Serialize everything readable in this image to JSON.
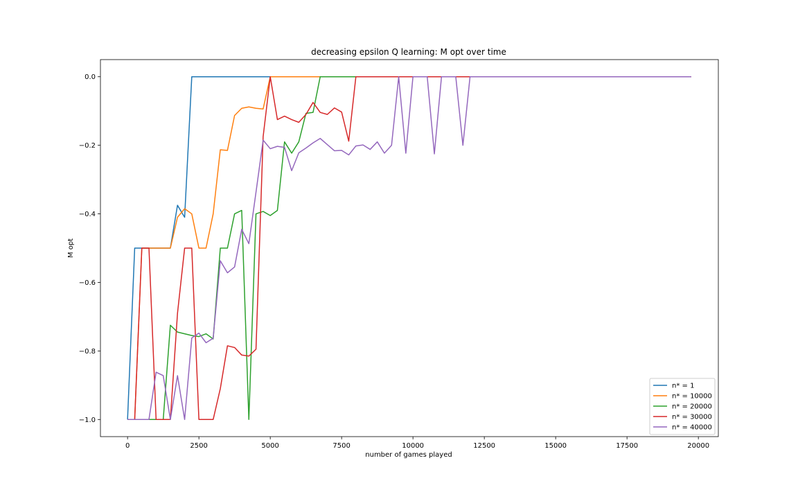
{
  "chart_data": {
    "type": "line",
    "title": "decreasing epsilon Q learning: M opt over time",
    "xlabel": "number of games played",
    "ylabel": "M opt",
    "xlim": [
      -950,
      20700
    ],
    "ylim": [
      -1.05,
      0.05
    ],
    "xticks": [
      0,
      2500,
      5000,
      7500,
      10000,
      12500,
      15000,
      17500,
      20000
    ],
    "yticks": [
      -1.0,
      -0.8,
      -0.6,
      -0.4,
      -0.2,
      0.0
    ],
    "xtick_labels": [
      "0",
      "2500",
      "5000",
      "7500",
      "10000",
      "12500",
      "15000",
      "17500",
      "20000"
    ],
    "ytick_labels": [
      "−1.0",
      "−0.8",
      "−0.6",
      "−0.4",
      "−0.2",
      "0.0"
    ],
    "grid": false,
    "legend_position": "lower-right",
    "series": [
      {
        "name": "n* = 1",
        "color": "#1f77b4",
        "x": [
          0,
          250,
          500,
          750,
          1000,
          1250,
          1500,
          1750,
          2000,
          2250,
          2500,
          5000,
          19750
        ],
        "y": [
          -1.0,
          -0.5,
          -0.5,
          -0.5,
          -0.5,
          -0.5,
          -0.5,
          -0.375,
          -0.41,
          0.0,
          0.0,
          0.0,
          0.0
        ]
      },
      {
        "name": "n* = 10000",
        "color": "#ff7f0e",
        "x": [
          0,
          250,
          500,
          750,
          1000,
          1250,
          1500,
          1750,
          2000,
          2250,
          2500,
          2750,
          3000,
          3250,
          3500,
          3750,
          4000,
          4250,
          4500,
          4750,
          5000,
          19750
        ],
        "y": [
          -1.0,
          -1.0,
          -0.5,
          -0.5,
          -0.5,
          -0.5,
          -0.5,
          -0.41,
          -0.385,
          -0.4,
          -0.5,
          -0.5,
          -0.4,
          -0.213,
          -0.215,
          -0.113,
          -0.092,
          -0.088,
          -0.092,
          -0.094,
          0.0,
          0.0
        ]
      },
      {
        "name": "n* = 20000",
        "color": "#2ca02c",
        "x": [
          0,
          250,
          500,
          750,
          1000,
          1250,
          1500,
          1750,
          2000,
          2250,
          2500,
          2750,
          3000,
          3250,
          3500,
          3750,
          4000,
          4250,
          4500,
          4750,
          5000,
          5250,
          5500,
          5750,
          6000,
          6250,
          6500,
          6750,
          19750
        ],
        "y": [
          -1.0,
          -1.0,
          -1.0,
          -1.0,
          -1.0,
          -1.0,
          -0.725,
          -0.745,
          -0.75,
          -0.755,
          -0.758,
          -0.75,
          -0.765,
          -0.5,
          -0.5,
          -0.4,
          -0.39,
          -1.0,
          -0.4,
          -0.393,
          -0.405,
          -0.39,
          -0.19,
          -0.223,
          -0.19,
          -0.107,
          -0.104,
          0.0,
          0.0
        ]
      },
      {
        "name": "n* = 30000",
        "color": "#d62728",
        "x": [
          0,
          250,
          500,
          750,
          1000,
          1250,
          1500,
          1750,
          2000,
          2250,
          2500,
          2750,
          3000,
          3250,
          3500,
          3750,
          4000,
          4250,
          4500,
          4750,
          5000,
          5250,
          5500,
          5750,
          6000,
          6250,
          6500,
          6750,
          7000,
          7250,
          7500,
          7750,
          8000,
          19750
        ],
        "y": [
          -1.0,
          -1.0,
          -0.5,
          -0.5,
          -1.0,
          -1.0,
          -1.0,
          -0.69,
          -0.5,
          -0.5,
          -1.0,
          -1.0,
          -1.0,
          -0.91,
          -0.785,
          -0.79,
          -0.812,
          -0.815,
          -0.795,
          -0.175,
          0.0,
          -0.125,
          -0.115,
          -0.125,
          -0.133,
          -0.11,
          -0.075,
          -0.104,
          -0.11,
          -0.091,
          -0.103,
          -0.188,
          0.0,
          0.0
        ]
      },
      {
        "name": "n* = 40000",
        "color": "#9467bd",
        "x": [
          0,
          250,
          500,
          750,
          1000,
          1250,
          1500,
          1750,
          2000,
          2250,
          2500,
          2750,
          3000,
          3250,
          3500,
          3750,
          4000,
          4250,
          4500,
          4750,
          5000,
          5250,
          5500,
          5750,
          6000,
          6250,
          6500,
          6750,
          7000,
          7250,
          7500,
          7750,
          8000,
          8250,
          8500,
          8750,
          9000,
          9250,
          9500,
          9750,
          10000,
          10250,
          10500,
          10750,
          11000,
          11250,
          11500,
          11750,
          12000,
          19750
        ],
        "y": [
          -1.0,
          -1.0,
          -1.0,
          -1.0,
          -0.862,
          -0.872,
          -1.0,
          -0.872,
          -1.0,
          -0.762,
          -0.748,
          -0.776,
          -0.763,
          -0.537,
          -0.572,
          -0.555,
          -0.445,
          -0.487,
          -0.337,
          -0.185,
          -0.21,
          -0.203,
          -0.206,
          -0.274,
          -0.222,
          -0.208,
          -0.193,
          -0.18,
          -0.198,
          -0.216,
          -0.215,
          -0.228,
          -0.202,
          -0.199,
          -0.212,
          -0.19,
          -0.223,
          -0.2,
          0.0,
          -0.223,
          0.0,
          0.0,
          0.0,
          -0.225,
          0.0,
          0.0,
          0.0,
          -0.2,
          0.0,
          0.0
        ]
      }
    ]
  }
}
